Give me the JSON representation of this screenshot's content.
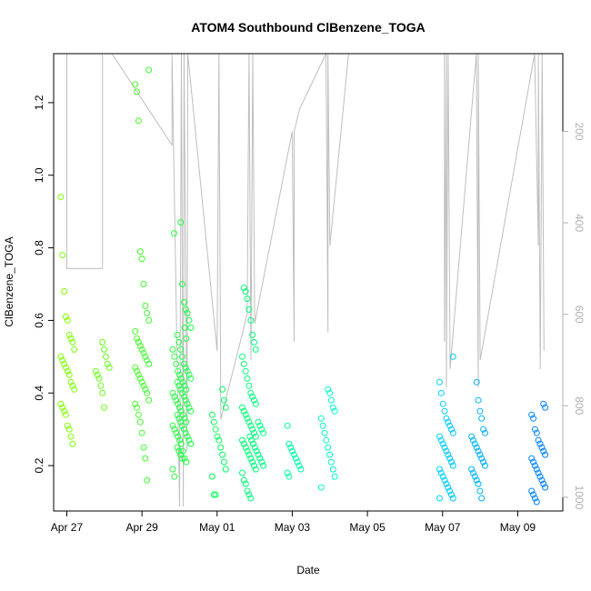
{
  "chart_data": {
    "type": "scatter",
    "title": "ATOM4 Southbound ClBenzene_TOGA",
    "xlabel": "Date",
    "ylabel": "ClBenzene_TOGA",
    "x_ticks": [
      "Apr 27",
      "Apr 29",
      "May 01",
      "May 03",
      "May 05",
      "May 07",
      "May 09"
    ],
    "x_tick_days": [
      0,
      2,
      4,
      6,
      8,
      10,
      12
    ],
    "xlim_days": [
      -0.35,
      13.2
    ],
    "y_ticks": [
      0.2,
      0.4,
      0.6,
      0.8,
      1.0,
      1.2
    ],
    "ylim": [
      0.075,
      1.335
    ],
    "y2_ticks": [
      200,
      400,
      600,
      800,
      1000
    ],
    "y2lim": [
      1030,
      30
    ],
    "y2_reversed": true,
    "point_style": "open-circle",
    "color_gradient": [
      "#7fff00",
      "#00ff60",
      "#00ffff",
      "#0080ff"
    ],
    "line_color": "#bebebe",
    "clusters": [
      {
        "x": 0.02,
        "values": [
          0.94,
          0.78,
          0.68,
          0.61,
          0.6,
          0.56,
          0.55,
          0.54,
          0.52,
          0.5,
          0.49,
          0.48,
          0.47,
          0.46,
          0.45,
          0.43,
          0.42,
          0.41,
          0.37,
          0.36,
          0.35,
          0.34,
          0.31,
          0.3,
          0.28,
          0.26
        ]
      },
      {
        "x": 0.95,
        "values": [
          0.54,
          0.52,
          0.5,
          0.48,
          0.47,
          0.46,
          0.45,
          0.44,
          0.42,
          0.4,
          0.36
        ]
      },
      {
        "x": 2.0,
        "values": [
          1.29,
          1.25,
          1.23,
          1.15,
          0.79,
          0.77,
          0.7,
          0.64,
          0.62,
          0.6,
          0.57,
          0.55,
          0.54,
          0.53,
          0.52,
          0.51,
          0.5,
          0.49,
          0.48,
          0.47,
          0.46,
          0.45,
          0.44,
          0.43,
          0.42,
          0.41,
          0.4,
          0.38,
          0.37,
          0.36,
          0.34,
          0.32,
          0.29,
          0.25,
          0.22,
          0.16
        ]
      },
      {
        "x": 2.9,
        "values": [
          0.84
        ]
      },
      {
        "x": 3.0,
        "values": [
          0.58,
          0.55,
          0.52,
          0.5,
          0.48,
          0.46,
          0.45,
          0.44,
          0.43,
          0.42,
          0.41,
          0.4,
          0.39,
          0.38,
          0.37,
          0.36,
          0.35,
          0.34,
          0.33,
          0.32,
          0.31,
          0.3,
          0.29,
          0.28,
          0.27,
          0.26,
          0.24,
          0.22,
          0.21,
          0.19,
          0.17
        ]
      },
      {
        "x": 3.12,
        "values": [
          0.87,
          0.7,
          0.65,
          0.63,
          0.62,
          0.6,
          0.58,
          0.56,
          0.54,
          0.52,
          0.5,
          0.48,
          0.47,
          0.46,
          0.45,
          0.44,
          0.43,
          0.42,
          0.41,
          0.4,
          0.39,
          0.38,
          0.37,
          0.36,
          0.35,
          0.34,
          0.33,
          0.32,
          0.31,
          0.3,
          0.29,
          0.28,
          0.27,
          0.26,
          0.25,
          0.24,
          0.23,
          0.22
        ]
      },
      {
        "x": 4.05,
        "values": [
          0.41,
          0.38,
          0.36,
          0.34,
          0.32,
          0.3,
          0.28,
          0.27,
          0.25,
          0.23,
          0.21,
          0.19,
          0.17,
          0.12,
          0.12
        ]
      },
      {
        "x": 4.85,
        "values": [
          0.69,
          0.68,
          0.66,
          0.63,
          0.6,
          0.56,
          0.54,
          0.52,
          0.5,
          0.48,
          0.46,
          0.44,
          0.42,
          0.4,
          0.39,
          0.38,
          0.37,
          0.36,
          0.35,
          0.34,
          0.33,
          0.32,
          0.31,
          0.3,
          0.29,
          0.28,
          0.27,
          0.26,
          0.25,
          0.24,
          0.23,
          0.22,
          0.21,
          0.2,
          0.19,
          0.18,
          0.16,
          0.15,
          0.13,
          0.12,
          0.11
        ]
      },
      {
        "x": 5.05,
        "values": [
          0.32,
          0.31,
          0.3,
          0.29,
          0.28,
          0.27,
          0.26,
          0.25,
          0.24,
          0.23,
          0.22,
          0.21,
          0.2
        ]
      },
      {
        "x": 6.05,
        "values": [
          0.31,
          0.26,
          0.25,
          0.24,
          0.23,
          0.22,
          0.21,
          0.2,
          0.19,
          0.18,
          0.17
        ]
      },
      {
        "x": 6.95,
        "values": [
          0.41,
          0.4,
          0.38,
          0.36,
          0.35,
          0.33,
          0.31,
          0.29,
          0.27,
          0.25,
          0.23,
          0.21,
          0.19,
          0.17,
          0.14
        ]
      },
      {
        "x": 10.1,
        "values": [
          0.5,
          0.43,
          0.4,
          0.37,
          0.35,
          0.33,
          0.32,
          0.31,
          0.3,
          0.29,
          0.28,
          0.27,
          0.26,
          0.25,
          0.24,
          0.23,
          0.22,
          0.21,
          0.2,
          0.19,
          0.18,
          0.17,
          0.16,
          0.15,
          0.14,
          0.13,
          0.12,
          0.11,
          0.11
        ]
      },
      {
        "x": 10.95,
        "values": [
          0.43,
          0.38,
          0.35,
          0.33,
          0.3,
          0.29,
          0.28,
          0.27,
          0.26,
          0.25,
          0.24,
          0.23,
          0.22,
          0.21,
          0.2,
          0.19,
          0.18,
          0.17,
          0.16,
          0.15,
          0.13,
          0.11
        ]
      },
      {
        "x": 12.55,
        "values": [
          0.37,
          0.36,
          0.34,
          0.33,
          0.3,
          0.29,
          0.27,
          0.26,
          0.25,
          0.24,
          0.23,
          0.22,
          0.21,
          0.2,
          0.19,
          0.18,
          0.17,
          0.16,
          0.15,
          0.14,
          0.13,
          0.12,
          0.11,
          0.1
        ]
      }
    ],
    "pressure_path": [
      [
        0.0,
        30
      ],
      [
        0.0,
        500
      ],
      [
        0.95,
        500
      ],
      [
        0.95,
        30
      ],
      [
        1.2,
        30
      ],
      [
        2.8,
        230
      ],
      [
        2.8,
        30
      ],
      [
        3.0,
        1020
      ],
      [
        3.05,
        30
      ],
      [
        3.1,
        1020
      ],
      [
        3.12,
        30
      ],
      [
        3.2,
        900
      ],
      [
        3.22,
        30
      ],
      [
        4.0,
        680
      ],
      [
        4.05,
        30
      ],
      [
        4.1,
        830
      ],
      [
        4.8,
        600
      ],
      [
        4.85,
        30
      ],
      [
        4.9,
        700
      ],
      [
        4.95,
        30
      ],
      [
        5.0,
        620
      ],
      [
        6.0,
        200
      ],
      [
        6.05,
        660
      ],
      [
        6.05,
        200
      ],
      [
        6.2,
        150
      ],
      [
        6.9,
        30
      ],
      [
        6.95,
        640
      ],
      [
        6.95,
        30
      ],
      [
        7.0,
        450
      ],
      [
        7.5,
        30
      ],
      [
        10.05,
        30
      ],
      [
        10.05,
        660
      ],
      [
        10.1,
        30
      ],
      [
        10.1,
        760
      ],
      [
        10.15,
        30
      ],
      [
        10.2,
        720
      ],
      [
        10.9,
        30
      ],
      [
        10.95,
        760
      ],
      [
        10.95,
        30
      ],
      [
        11.0,
        700
      ],
      [
        12.45,
        30
      ],
      [
        12.55,
        450
      ],
      [
        12.55,
        30
      ],
      [
        12.6,
        720
      ],
      [
        12.65,
        30
      ],
      [
        12.7,
        680
      ]
    ]
  }
}
